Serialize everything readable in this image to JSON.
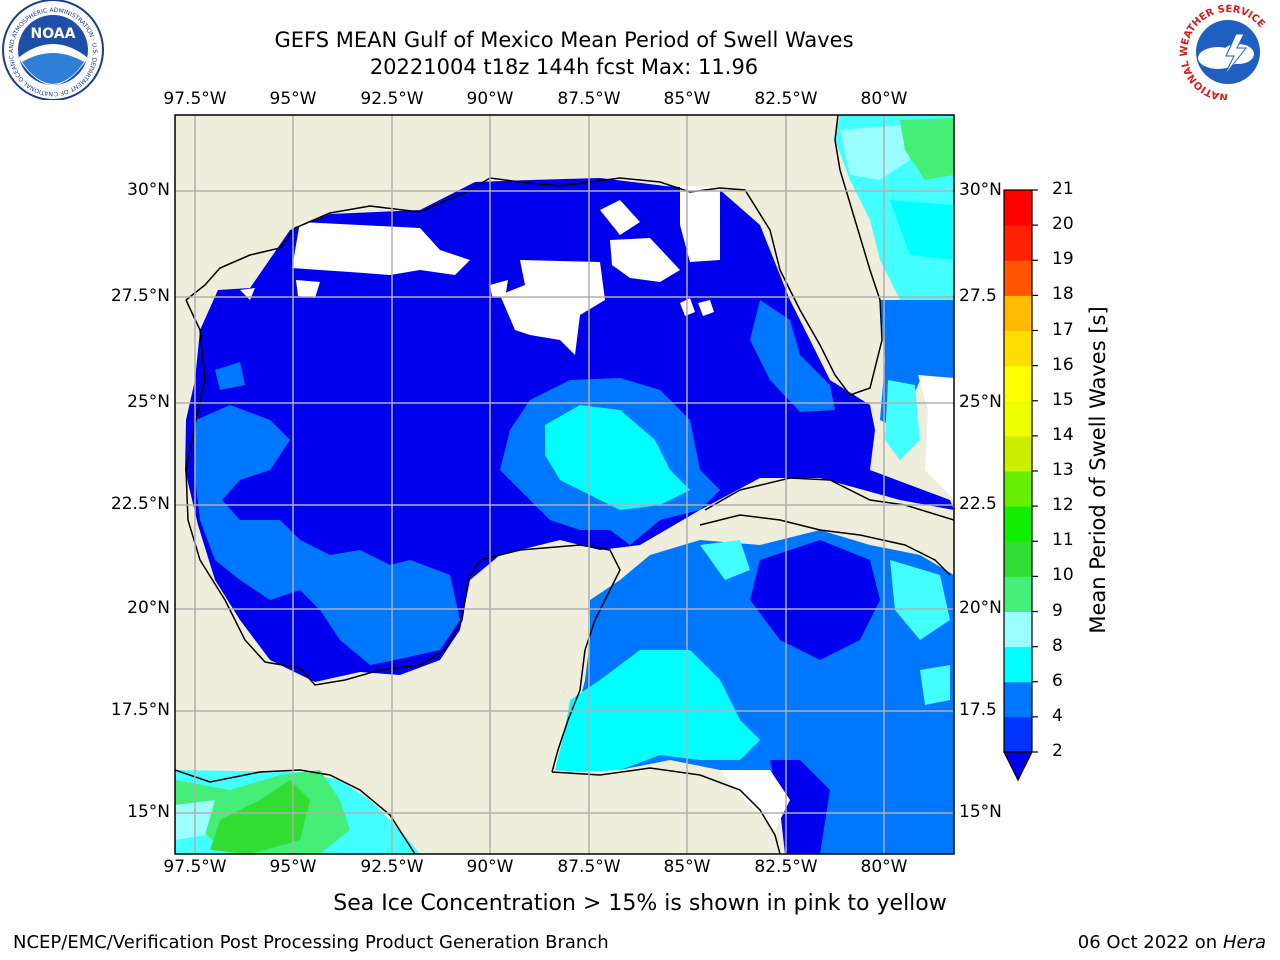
{
  "title": {
    "line1": "GEFS MEAN Gulf of Mexico Mean Period of Swell Waves",
    "line2": "20221004 t18z 144h fcst   Max: 11.96"
  },
  "axes": {
    "lon_labels": [
      "97.5°W",
      "95°W",
      "92.5°W",
      "90°W",
      "87.5°W",
      "85°W",
      "82.5°W",
      "80°W"
    ],
    "lat_labels_left": [
      "30°N",
      "27.5°N",
      "25°N",
      "22.5°N",
      "20°N",
      "17.5°N",
      "15°N"
    ],
    "lat_labels_right": [
      "30°N",
      "27.5",
      "25°N",
      "22.5",
      "20°N",
      "17.5",
      "15°N"
    ]
  },
  "colorbar": {
    "label": "Mean Period of Swell Waves [s]",
    "ticks": [
      "2",
      "4",
      "6",
      "8",
      "9",
      "10",
      "11",
      "12",
      "13",
      "14",
      "15",
      "16",
      "17",
      "18",
      "19",
      "20",
      "21"
    ],
    "colors": [
      "#0033ff",
      "#0077ff",
      "#00ffff",
      "#44ffff",
      "#99ffff",
      "#44ee77",
      "#33dd33",
      "#11ee00",
      "#66ee00",
      "#aaee00",
      "#ccee00",
      "#eeff00",
      "#ffff00",
      "#ffdd00",
      "#ffbb00",
      "#ff8800",
      "#ff5500",
      "#ff2200",
      "#ff0000"
    ],
    "under_color": "#0000ee"
  },
  "note": "Sea Ice Concentration > 15% is shown in pink to yellow",
  "footer": {
    "left": "NCEP/EMC/Verification Post Processing Product Generation Branch",
    "date": "06 Oct 2022 on ",
    "machine": "Hera"
  },
  "logos": {
    "noaa_text": "NOAA",
    "noaa_ring": "NATIONAL OCEANIC AND ATMOSPHERIC ADMINISTRATION · U.S. DEPARTMENT OF COMMERCE",
    "nws_ring": "NATIONAL WEATHER SERVICE"
  },
  "colors": {
    "land": "#efeedd",
    "no_data": "#ffffff",
    "deep_blue": "#0000ee",
    "mid_blue": "#0077ff",
    "cyan": "#00ffff",
    "light_cyan": "#44ffff",
    "green": "#44ee77",
    "grid": "#b0b0b0"
  }
}
